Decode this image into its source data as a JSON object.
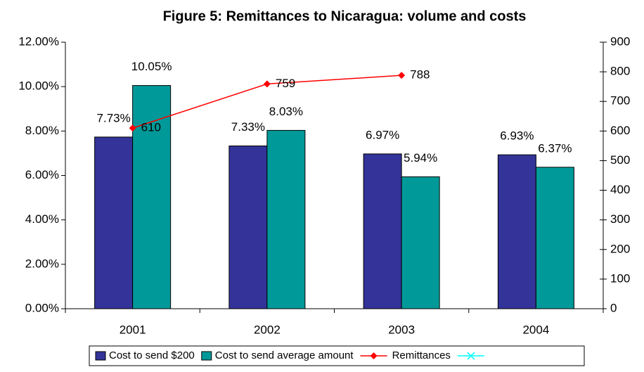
{
  "chart_data": {
    "type": "bar",
    "title": "Figure 5: Remittances to Nicaragua: volume and costs",
    "categories": [
      "2001",
      "2002",
      "2003",
      "2004"
    ],
    "series": [
      {
        "name": "Cost to send $200",
        "color": "#333399",
        "values": [
          7.73,
          7.33,
          6.97,
          6.93
        ],
        "value_labels": [
          "7.73%",
          "7.33%",
          "6.97%",
          "6.93%"
        ]
      },
      {
        "name": "Cost to send average amount",
        "color": "#009999",
        "values": [
          10.05,
          8.03,
          5.94,
          6.37
        ],
        "value_labels": [
          "10.05%",
          "8.03%",
          "5.94%",
          "6.37%"
        ]
      },
      {
        "name": "Remittances",
        "type": "line",
        "axis": "y2",
        "color": "#ff0000",
        "values": [
          610,
          759,
          788,
          null
        ]
      },
      {
        "name": null,
        "type": "line",
        "axis": "y2",
        "color": "#00ffff",
        "values": [
          null,
          null,
          null,
          null
        ]
      }
    ],
    "ylim": [
      0,
      12
    ],
    "yticks": [
      {
        "value": 0,
        "label": "0.00%"
      },
      {
        "value": 2,
        "label": "2.00%"
      },
      {
        "value": 4,
        "label": "4.00%"
      },
      {
        "value": 6,
        "label": "6.00%"
      },
      {
        "value": 8,
        "label": "8.00%"
      },
      {
        "value": 10,
        "label": "10.00%"
      },
      {
        "value": 12,
        "label": "12.00%"
      }
    ],
    "y2lim": [
      0,
      900
    ],
    "y2ticks": [
      0,
      100,
      200,
      300,
      400,
      500,
      600,
      700,
      800,
      900
    ],
    "grid": false
  }
}
